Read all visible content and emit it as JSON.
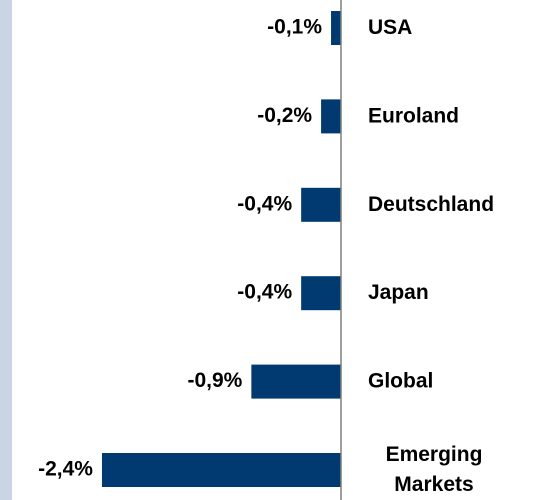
{
  "chart_data": {
    "type": "bar",
    "orientation": "horizontal",
    "categories": [
      "USA",
      "Euroland",
      "Deutschland",
      "Japan",
      "Global",
      "Emerging\nMarkets"
    ],
    "values": [
      -0.1,
      -0.2,
      -0.4,
      -0.4,
      -0.9,
      -2.4
    ],
    "value_labels": [
      "-0,1%",
      "-0,2%",
      "-0,4%",
      "-0,4%",
      "-0,9%",
      "-2,4%"
    ],
    "color": "#003a70",
    "xlim": [
      -2.5,
      0
    ]
  }
}
